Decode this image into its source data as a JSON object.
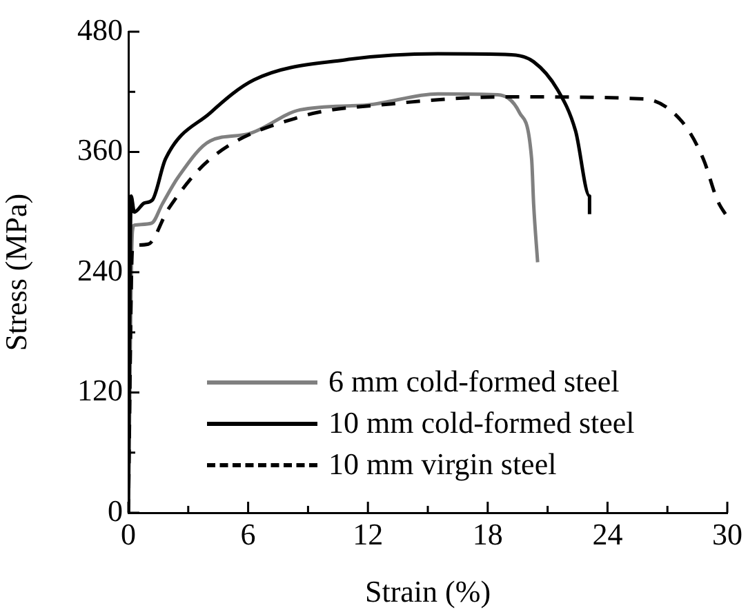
{
  "chart_data": {
    "type": "line",
    "xlabel": "Strain (%)",
    "ylabel": "Stress (MPa)",
    "xlim": [
      0,
      30
    ],
    "ylim": [
      0,
      480
    ],
    "xticks": [
      0,
      {
        "value": 3,
        "label": null
      },
      6,
      {
        "value": 9,
        "label": null
      },
      12,
      {
        "value": 15,
        "label": null
      },
      18,
      {
        "value": 21,
        "label": null
      },
      24,
      {
        "value": 27,
        "label": null
      },
      30
    ],
    "yticks": [
      0,
      {
        "value": 60,
        "label": null
      },
      120,
      {
        "value": 180,
        "label": null
      },
      240,
      {
        "value": 300,
        "label": null
      },
      360,
      {
        "value": 420,
        "label": null
      },
      480
    ],
    "grid": false,
    "legend": "bottom",
    "marker": "none",
    "series": [
      {
        "name": "6 mm cold-formed steel",
        "color": "#808080",
        "line_style": "solid",
        "x": [
          0,
          0.2,
          0.3,
          1.17,
          1.7,
          2.5,
          4.1,
          6,
          8.6,
          12,
          15.5,
          18.5,
          19.6,
          20.2,
          20.3,
          20.5
        ],
        "values": [
          0,
          280,
          287,
          289,
          308,
          335,
          371,
          378,
          402,
          407,
          418,
          417,
          399,
          353,
          308,
          250
        ]
      },
      {
        "name": "10 mm cold-formed steel",
        "color": "#000000",
        "line_style": "solid",
        "x": [
          0,
          0.14,
          0.3,
          0.8,
          1.2,
          1.86,
          4.1,
          6.3,
          10.9,
          15.5,
          19.2,
          20.3,
          21.5,
          22.4,
          23.1,
          23.1
        ],
        "values": [
          0,
          316,
          300,
          309,
          312,
          353,
          399,
          432,
          452,
          458,
          457,
          450,
          422,
          381,
          316,
          298
        ]
      },
      {
        "name": "10 mm virgin steel",
        "color": "#000000",
        "line_style": "dashed",
        "x": [
          0,
          0.2,
          0.35,
          1,
          2,
          4.1,
          8.6,
          13.2,
          18.9,
          25.8,
          27.7,
          28.8,
          29.5,
          30
        ],
        "values": [
          0,
          262,
          267,
          268,
          303,
          353,
          395,
          408,
          415,
          413,
          391,
          353,
          312,
          295
        ]
      }
    ]
  }
}
